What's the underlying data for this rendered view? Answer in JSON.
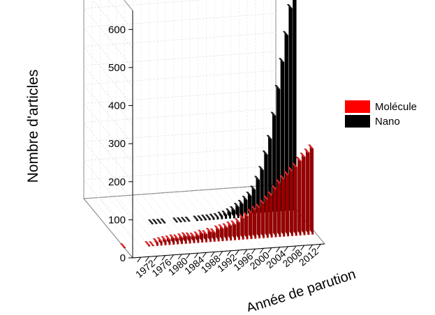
{
  "chart_data": {
    "type": "bar",
    "subtype": "3d-grouped-bar",
    "xlabel": "Année de parution",
    "ylabel": "Nombre d'articles",
    "ylim": [
      0,
      650
    ],
    "yticks": [
      0,
      100,
      200,
      300,
      400,
      500,
      600
    ],
    "xtick_labels": [
      "1972",
      "1976",
      "1980",
      "1984",
      "1988",
      "1992",
      "1996",
      "2000",
      "2004",
      "2008",
      "2012"
    ],
    "x_range": [
      1966,
      2013
    ],
    "legend_position": "right",
    "grid": true,
    "series": [
      {
        "name": "Molécule",
        "color": "#ff0000",
        "x": [
          1966,
          1972,
          1973,
          1974,
          1975,
          1976,
          1977,
          1978,
          1979,
          1980,
          1981,
          1982,
          1983,
          1984,
          1985,
          1986,
          1987,
          1988,
          1989,
          1990,
          1991,
          1992,
          1993,
          1994,
          1995,
          1996,
          1997,
          1998,
          1999,
          2000,
          2001,
          2002,
          2003,
          2004,
          2005,
          2006,
          2007,
          2008,
          2009,
          2010,
          2011,
          2012
        ],
        "values": [
          1,
          2,
          1,
          8,
          10,
          12,
          13,
          15,
          14,
          16,
          18,
          17,
          16,
          18,
          22,
          20,
          25,
          23,
          30,
          32,
          34,
          38,
          40,
          45,
          55,
          60,
          68,
          75,
          80,
          90,
          100,
          110,
          125,
          140,
          150,
          160,
          170,
          180,
          195,
          205,
          215,
          225
        ]
      },
      {
        "name": "Nano",
        "color": "#000000",
        "x": [
          1977,
          1978,
          1979,
          1980,
          1983,
          1984,
          1985,
          1986,
          1988,
          1989,
          1990,
          1991,
          1992,
          1993,
          1994,
          1995,
          1996,
          1997,
          1998,
          1999,
          2000,
          2001,
          2002,
          2003,
          2004,
          2005,
          2006,
          2007,
          2008,
          2009,
          2010,
          2011,
          2012
        ],
        "values": [
          1,
          1,
          1,
          1,
          1,
          1,
          1,
          1,
          2,
          2,
          3,
          3,
          4,
          5,
          8,
          10,
          15,
          20,
          28,
          35,
          45,
          55,
          70,
          95,
          120,
          160,
          200,
          260,
          330,
          400,
          470,
          540,
          600
        ]
      }
    ]
  }
}
